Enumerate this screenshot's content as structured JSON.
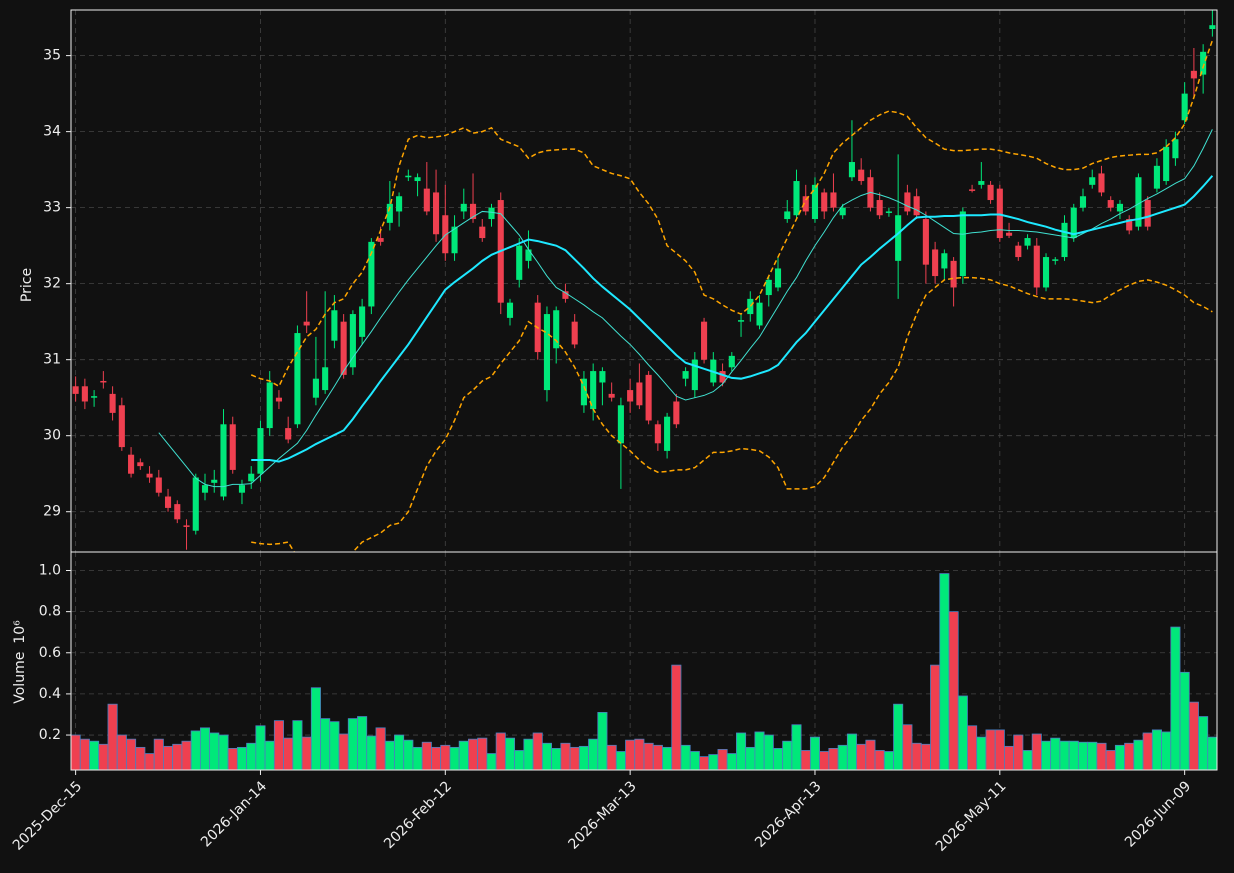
{
  "chart_data": {
    "type": "candlestick",
    "ylabel": "Price",
    "volume_label": "Volume",
    "volume_scale": "10⁶",
    "up_color": "#00e87a",
    "down_color": "#ef4050",
    "volume_edge_color": "#4a7fc0",
    "grid": true,
    "ylim": [
      28.47,
      35.6
    ],
    "yticks": [
      29,
      30,
      31,
      32,
      33,
      34,
      35
    ],
    "volume_ylim": [
      0.03,
      1.09
    ],
    "volume_ticks": [
      0.2,
      0.4,
      0.6,
      0.8,
      {
        "value": 1,
        "label": "1.0"
      }
    ],
    "categories": [
      "2025-Dec-15",
      null,
      null,
      null,
      null,
      null,
      null,
      null,
      null,
      null,
      null,
      null,
      null,
      null,
      null,
      null,
      null,
      null,
      null,
      null,
      "2026-Jan-14",
      null,
      null,
      null,
      null,
      null,
      null,
      null,
      null,
      null,
      null,
      null,
      null,
      null,
      null,
      null,
      null,
      null,
      null,
      null,
      "2026-Feb-12",
      null,
      null,
      null,
      null,
      null,
      null,
      null,
      null,
      null,
      null,
      null,
      null,
      null,
      null,
      null,
      null,
      null,
      null,
      null,
      "2026-Mar-13",
      null,
      null,
      null,
      null,
      null,
      null,
      null,
      null,
      null,
      null,
      null,
      null,
      null,
      null,
      null,
      null,
      null,
      null,
      null,
      "2026-Apr-13",
      null,
      null,
      null,
      null,
      null,
      null,
      null,
      null,
      null,
      null,
      null,
      null,
      null,
      null,
      null,
      null,
      null,
      null,
      null,
      "2026-May-11",
      null,
      null,
      null,
      null,
      null,
      null,
      null,
      null,
      null,
      null,
      null,
      null,
      null,
      null,
      null,
      null,
      null,
      null,
      null,
      "2026-Jun-09",
      null,
      null,
      null
    ],
    "open": [
      30.65,
      30.65,
      30.5,
      30.72,
      30.55,
      30.4,
      29.75,
      29.65,
      29.5,
      29.45,
      29.2,
      29.1,
      28.82,
      28.75,
      29.25,
      29.38,
      29.2,
      30.15,
      29.25,
      29.4,
      29.5,
      30.1,
      30.5,
      30.1,
      30.15,
      31.5,
      30.5,
      30.6,
      31.25,
      31.5,
      30.9,
      31.3,
      31.7,
      32.6,
      32.8,
      32.95,
      33.4,
      33.35,
      33.25,
      33.2,
      32.9,
      32.4,
      32.95,
      33.05,
      32.75,
      32.85,
      33.1,
      31.55,
      32.05,
      32.3,
      31.75,
      30.6,
      31.15,
      31.9,
      31.5,
      30.4,
      30.35,
      30.7,
      30.55,
      29.9,
      30.6,
      30.7,
      30.8,
      30.15,
      29.8,
      30.45,
      30.75,
      30.6,
      31.5,
      30.7,
      30.85,
      30.9,
      31.5,
      31.6,
      31.45,
      31.85,
      31.95,
      32.85,
      32.9,
      33.15,
      32.85,
      33.2,
      33.2,
      32.9,
      33.4,
      33.5,
      33.4,
      33.1,
      32.93,
      32.3,
      33.2,
      33.15,
      32.85,
      32.45,
      32.2,
      32.3,
      32.1,
      33.24,
      33.3,
      33.3,
      33.25,
      32.67,
      32.5,
      32.5,
      32.5,
      31.95,
      32.3,
      32.35,
      32.6,
      33.0,
      33.3,
      33.45,
      33.1,
      32.95,
      32.85,
      32.75,
      33.1,
      33.25,
      33.35,
      33.65,
      34.15,
      34.8,
      34.75,
      35.35
    ],
    "high": [
      30.78,
      30.75,
      30.6,
      30.85,
      30.65,
      30.5,
      29.85,
      29.7,
      29.6,
      29.55,
      29.3,
      29.15,
      28.9,
      29.5,
      29.5,
      29.55,
      30.35,
      30.25,
      29.42,
      29.6,
      30.2,
      30.85,
      30.6,
      30.25,
      31.45,
      31.9,
      31.3,
      31.9,
      31.85,
      31.6,
      31.65,
      31.8,
      32.6,
      32.75,
      33.35,
      33.2,
      33.5,
      33.45,
      33.6,
      33.5,
      33.3,
      32.9,
      33.25,
      33.45,
      32.85,
      33.05,
      33.2,
      31.8,
      32.6,
      32.7,
      31.85,
      31.7,
      31.7,
      32.0,
      31.6,
      30.85,
      30.95,
      30.9,
      30.7,
      30.5,
      30.75,
      30.95,
      30.85,
      30.2,
      30.3,
      30.55,
      30.9,
      31.1,
      31.55,
      31.1,
      30.95,
      31.1,
      31.6,
      31.9,
      31.85,
      32.1,
      32.35,
      33.1,
      33.5,
      33.3,
      33.4,
      33.25,
      33.45,
      33.05,
      34.15,
      33.65,
      33.5,
      33.2,
      33.0,
      33.7,
      33.3,
      33.25,
      32.95,
      32.55,
      32.45,
      32.35,
      33.0,
      33.3,
      33.6,
      33.35,
      33.3,
      32.8,
      32.55,
      32.65,
      32.6,
      32.4,
      32.35,
      32.9,
      33.05,
      33.25,
      33.5,
      33.55,
      33.15,
      33.1,
      32.9,
      33.45,
      33.15,
      33.65,
      33.9,
      34.0,
      34.65,
      35.1,
      35.15,
      35.6
    ],
    "low": [
      30.45,
      30.35,
      30.38,
      30.62,
      30.2,
      29.8,
      29.45,
      29.55,
      29.38,
      29.2,
      29.0,
      28.85,
      28.5,
      28.7,
      29.15,
      29.25,
      29.15,
      29.5,
      29.1,
      29.3,
      29.4,
      30.0,
      30.35,
      29.9,
      30.1,
      31.35,
      30.4,
      30.55,
      31.15,
      30.75,
      30.8,
      31.2,
      31.6,
      32.5,
      32.7,
      32.75,
      33.35,
      33.15,
      32.9,
      32.55,
      32.3,
      32.3,
      32.85,
      32.8,
      32.55,
      32.75,
      31.6,
      31.45,
      31.95,
      32.2,
      31.0,
      30.45,
      30.95,
      31.75,
      31.15,
      30.3,
      30.2,
      30.4,
      30.45,
      29.3,
      30.3,
      30.35,
      30.15,
      29.8,
      29.7,
      30.1,
      30.65,
      30.5,
      30.95,
      30.65,
      30.65,
      30.85,
      31.3,
      31.5,
      31.4,
      31.7,
      31.9,
      32.8,
      32.85,
      32.9,
      32.8,
      32.85,
      32.95,
      32.85,
      33.35,
      33.3,
      32.95,
      32.85,
      32.88,
      31.8,
      32.9,
      32.85,
      32.0,
      32.0,
      32.05,
      31.7,
      32.0,
      33.2,
      33.25,
      33.05,
      32.55,
      32.6,
      32.3,
      32.45,
      31.85,
      31.9,
      32.25,
      32.3,
      32.55,
      32.95,
      33.25,
      33.15,
      32.95,
      32.85,
      32.65,
      32.7,
      32.7,
      33.2,
      33.3,
      33.55,
      34.1,
      34.45,
      34.5,
      35.25
    ],
    "close": [
      30.55,
      30.45,
      30.52,
      30.7,
      30.3,
      29.85,
      29.5,
      29.6,
      29.45,
      29.25,
      29.05,
      28.9,
      28.8,
      29.45,
      29.35,
      29.42,
      30.15,
      29.55,
      29.35,
      29.5,
      30.1,
      30.7,
      30.45,
      29.95,
      31.35,
      31.45,
      30.75,
      30.9,
      31.65,
      30.8,
      31.6,
      31.7,
      32.55,
      32.55,
      33.05,
      33.15,
      33.42,
      33.4,
      32.95,
      32.65,
      32.4,
      32.75,
      33.05,
      32.85,
      32.6,
      33.0,
      31.75,
      31.75,
      32.5,
      32.45,
      31.1,
      31.6,
      31.65,
      31.8,
      31.2,
      30.75,
      30.85,
      30.85,
      30.5,
      30.4,
      30.45,
      30.4,
      30.2,
      29.9,
      30.25,
      30.15,
      30.85,
      31.0,
      31.0,
      31.0,
      30.7,
      31.05,
      31.52,
      31.8,
      31.75,
      32.05,
      32.2,
      32.95,
      33.35,
      32.95,
      33.3,
      32.95,
      33.0,
      33.0,
      33.6,
      33.35,
      33.0,
      32.9,
      32.95,
      32.9,
      32.95,
      32.9,
      32.25,
      32.1,
      32.4,
      31.95,
      32.95,
      33.22,
      33.35,
      33.1,
      32.6,
      32.63,
      32.35,
      32.6,
      31.95,
      32.35,
      32.32,
      32.8,
      33.0,
      33.15,
      33.4,
      33.2,
      33.0,
      33.05,
      32.7,
      33.4,
      32.75,
      33.55,
      33.8,
      33.9,
      34.5,
      34.7,
      35.05,
      35.4
    ],
    "volume": [
      0.2,
      0.18,
      0.17,
      0.155,
      0.35,
      0.2,
      0.18,
      0.14,
      0.11,
      0.18,
      0.145,
      0.155,
      0.17,
      0.22,
      0.235,
      0.21,
      0.2,
      0.135,
      0.14,
      0.16,
      0.245,
      0.17,
      0.27,
      0.185,
      0.27,
      0.19,
      0.43,
      0.28,
      0.265,
      0.205,
      0.28,
      0.29,
      0.195,
      0.235,
      0.17,
      0.2,
      0.175,
      0.14,
      0.165,
      0.14,
      0.15,
      0.14,
      0.17,
      0.18,
      0.185,
      0.11,
      0.21,
      0.185,
      0.125,
      0.18,
      0.21,
      0.16,
      0.135,
      0.16,
      0.14,
      0.145,
      0.18,
      0.31,
      0.15,
      0.12,
      0.175,
      0.18,
      0.16,
      0.15,
      0.14,
      0.54,
      0.15,
      0.12,
      0.095,
      0.105,
      0.13,
      0.11,
      0.21,
      0.14,
      0.215,
      0.2,
      0.135,
      0.17,
      0.25,
      0.125,
      0.19,
      0.12,
      0.135,
      0.15,
      0.205,
      0.155,
      0.175,
      0.125,
      0.12,
      0.35,
      0.25,
      0.16,
      0.155,
      0.54,
      0.985,
      0.8,
      0.39,
      0.245,
      0.19,
      0.225,
      0.225,
      0.145,
      0.2,
      0.125,
      0.205,
      0.17,
      0.185,
      0.17,
      0.17,
      0.165,
      0.165,
      0.16,
      0.125,
      0.15,
      0.16,
      0.175,
      0.21,
      0.225,
      0.215,
      0.725,
      0.505,
      0.36,
      0.29,
      0.19
    ],
    "lines": [
      {
        "color": "#40e0d0",
        "width": 1,
        "dash": false,
        "values": [
          null,
          null,
          null,
          null,
          null,
          null,
          null,
          null,
          null,
          30.04,
          29.89,
          29.74,
          29.59,
          29.44,
          29.36,
          29.33,
          29.33,
          29.36,
          29.36,
          29.37,
          29.48,
          29.59,
          29.7,
          29.8,
          29.9,
          30.07,
          30.27,
          30.46,
          30.65,
          30.85,
          31.03,
          31.2,
          31.37,
          31.55,
          31.72,
          31.89,
          32.05,
          32.2,
          32.35,
          32.5,
          32.64,
          32.72,
          32.8,
          32.88,
          32.95,
          32.94,
          32.92,
          32.78,
          32.64,
          32.45,
          32.28,
          32.1,
          31.95,
          31.88,
          31.8,
          31.72,
          31.63,
          31.55,
          31.43,
          31.31,
          31.2,
          31.07,
          30.93,
          30.8,
          30.66,
          30.52,
          30.47,
          30.5,
          30.53,
          30.58,
          30.68,
          30.84,
          30.99,
          31.15,
          31.3,
          31.5,
          31.7,
          31.9,
          32.08,
          32.3,
          32.5,
          32.68,
          32.87,
          33.03,
          33.1,
          33.16,
          33.2,
          33.17,
          33.13,
          33.08,
          33.02,
          32.97,
          32.9,
          32.82,
          32.74,
          32.66,
          32.65,
          32.67,
          32.68,
          32.7,
          32.71,
          32.7,
          32.7,
          32.69,
          32.68,
          32.66,
          32.64,
          32.62,
          32.6,
          32.66,
          32.72,
          32.79,
          32.85,
          32.92,
          32.98,
          33.05,
          33.12,
          33.18,
          33.25,
          33.32,
          33.38,
          33.55,
          33.78,
          34.03
        ]
      },
      {
        "color": "#1ee8ff",
        "width": 2,
        "dash": false,
        "values": [
          null,
          null,
          null,
          null,
          null,
          null,
          null,
          null,
          null,
          null,
          null,
          null,
          null,
          null,
          null,
          null,
          null,
          null,
          null,
          29.68,
          29.68,
          29.68,
          29.66,
          29.7,
          29.76,
          29.82,
          29.89,
          29.95,
          30.01,
          30.07,
          30.22,
          30.39,
          30.55,
          30.72,
          30.88,
          31.04,
          31.2,
          31.38,
          31.56,
          31.74,
          31.92,
          32.02,
          32.11,
          32.2,
          32.3,
          32.38,
          32.43,
          32.48,
          32.53,
          32.58,
          32.56,
          32.53,
          32.5,
          32.44,
          32.32,
          32.2,
          32.07,
          31.96,
          31.86,
          31.76,
          31.66,
          31.54,
          31.42,
          31.3,
          31.18,
          31.06,
          30.96,
          30.92,
          30.88,
          30.84,
          30.8,
          30.76,
          30.75,
          30.78,
          30.82,
          30.86,
          30.93,
          31.08,
          31.23,
          31.35,
          31.5,
          31.65,
          31.8,
          31.95,
          32.1,
          32.25,
          32.35,
          32.46,
          32.56,
          32.66,
          32.77,
          32.87,
          32.88,
          32.88,
          32.89,
          32.89,
          32.9,
          32.9,
          32.9,
          32.91,
          32.91,
          32.88,
          32.85,
          32.81,
          32.78,
          32.75,
          32.71,
          32.68,
          32.65,
          32.68,
          32.71,
          32.74,
          32.77,
          32.8,
          32.83,
          32.85,
          32.88,
          32.92,
          32.96,
          33.0,
          33.04,
          33.15,
          33.28,
          33.42
        ]
      },
      {
        "color": "#ffa500",
        "width": 1.5,
        "dash": true,
        "values": [
          null,
          null,
          null,
          null,
          null,
          null,
          null,
          null,
          null,
          null,
          null,
          null,
          null,
          null,
          null,
          null,
          null,
          null,
          null,
          30.8,
          30.75,
          30.72,
          30.65,
          30.9,
          31.1,
          31.3,
          31.4,
          31.6,
          31.75,
          31.8,
          32.0,
          32.15,
          32.4,
          32.7,
          33.0,
          33.55,
          33.9,
          33.95,
          33.92,
          33.93,
          33.95,
          34.0,
          34.05,
          33.98,
          34.0,
          34.05,
          33.9,
          33.85,
          33.8,
          33.65,
          33.72,
          33.75,
          33.76,
          33.77,
          33.77,
          33.72,
          33.55,
          33.5,
          33.45,
          33.42,
          33.38,
          33.2,
          33.05,
          32.85,
          32.5,
          32.4,
          32.3,
          32.15,
          31.85,
          31.8,
          31.72,
          31.65,
          31.6,
          31.7,
          31.85,
          32.1,
          32.35,
          32.6,
          32.85,
          33.1,
          33.25,
          33.45,
          33.72,
          33.85,
          33.95,
          34.05,
          34.15,
          34.22,
          34.27,
          34.25,
          34.2,
          34.05,
          33.92,
          33.85,
          33.77,
          33.75,
          33.75,
          33.76,
          33.77,
          33.77,
          33.75,
          33.72,
          33.7,
          33.68,
          33.65,
          33.58,
          33.53,
          33.5,
          33.5,
          33.52,
          33.58,
          33.62,
          33.66,
          33.68,
          33.69,
          33.7,
          33.7,
          33.72,
          33.8,
          33.92,
          34.1,
          34.45,
          34.85,
          35.2
        ]
      },
      {
        "color": "#ffa500",
        "width": 1.5,
        "dash": true,
        "values": [
          null,
          null,
          null,
          null,
          null,
          null,
          null,
          null,
          null,
          null,
          null,
          null,
          null,
          null,
          null,
          null,
          null,
          null,
          null,
          28.6,
          28.58,
          28.57,
          28.58,
          28.6,
          28.4,
          28.3,
          28.2,
          28.18,
          28.2,
          28.35,
          28.47,
          28.6,
          28.66,
          28.72,
          28.82,
          28.85,
          29.0,
          29.3,
          29.6,
          29.8,
          29.95,
          30.2,
          30.5,
          30.6,
          30.72,
          30.78,
          30.95,
          31.1,
          31.25,
          31.5,
          31.42,
          31.35,
          31.25,
          31.1,
          30.9,
          30.65,
          30.35,
          30.15,
          30.0,
          29.9,
          29.8,
          29.68,
          29.58,
          29.52,
          29.53,
          29.55,
          29.55,
          29.58,
          29.68,
          29.78,
          29.78,
          29.8,
          29.83,
          29.82,
          29.8,
          29.72,
          29.58,
          29.3,
          29.3,
          29.3,
          29.33,
          29.45,
          29.65,
          29.85,
          30.0,
          30.2,
          30.35,
          30.55,
          30.7,
          30.9,
          31.3,
          31.6,
          31.85,
          31.95,
          32.05,
          32.07,
          32.08,
          32.08,
          32.07,
          32.05,
          32.0,
          31.97,
          31.92,
          31.87,
          31.83,
          31.8,
          31.8,
          31.8,
          31.79,
          31.77,
          31.75,
          31.77,
          31.85,
          31.92,
          31.98,
          32.03,
          32.05,
          32.02,
          31.98,
          31.92,
          31.85,
          31.75,
          31.7,
          31.63
        ]
      }
    ]
  }
}
